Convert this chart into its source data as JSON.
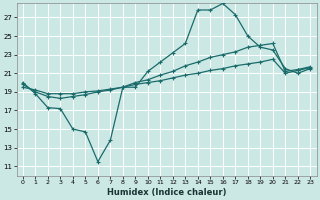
{
  "xlabel": "Humidex (Indice chaleur)",
  "bg_color": "#cce8e5",
  "line_color": "#1a6b6b",
  "grid_color": "#ffffff",
  "xlim": [
    -0.5,
    23.5
  ],
  "ylim": [
    10,
    28.5
  ],
  "yticks": [
    11,
    13,
    15,
    17,
    19,
    21,
    23,
    25,
    27
  ],
  "xticks": [
    0,
    1,
    2,
    3,
    4,
    5,
    6,
    7,
    8,
    9,
    10,
    11,
    12,
    13,
    14,
    15,
    16,
    17,
    18,
    19,
    20,
    21,
    22,
    23
  ],
  "line1_x": [
    0,
    1,
    2,
    3,
    4,
    5,
    6,
    7,
    8,
    9,
    10,
    11,
    12,
    13,
    14,
    15,
    16,
    17,
    18,
    19,
    20,
    21,
    22,
    23
  ],
  "line1_y": [
    20.0,
    18.8,
    17.3,
    17.2,
    15.0,
    14.7,
    11.5,
    13.8,
    19.5,
    19.5,
    21.2,
    22.2,
    23.2,
    24.2,
    27.8,
    27.8,
    28.5,
    27.3,
    25.0,
    23.8,
    23.5,
    21.5,
    21.0,
    21.5
  ],
  "line2_x": [
    0,
    1,
    2,
    3,
    4,
    5,
    6,
    7,
    8,
    9,
    10,
    11,
    12,
    13,
    14,
    15,
    16,
    17,
    18,
    19,
    20,
    21,
    22,
    23
  ],
  "line2_y": [
    19.8,
    19.0,
    18.5,
    18.3,
    18.5,
    18.7,
    19.0,
    19.2,
    19.5,
    20.0,
    20.3,
    20.8,
    21.2,
    21.8,
    22.2,
    22.7,
    23.0,
    23.3,
    23.8,
    24.0,
    24.2,
    21.2,
    21.4,
    21.7
  ],
  "line3_x": [
    0,
    1,
    2,
    3,
    4,
    5,
    6,
    7,
    8,
    9,
    10,
    11,
    12,
    13,
    14,
    15,
    16,
    17,
    18,
    19,
    20,
    21,
    22,
    23
  ],
  "line3_y": [
    19.5,
    19.2,
    18.8,
    18.8,
    18.8,
    19.0,
    19.1,
    19.3,
    19.5,
    19.8,
    20.0,
    20.2,
    20.5,
    20.8,
    21.0,
    21.3,
    21.5,
    21.8,
    22.0,
    22.2,
    22.5,
    21.0,
    21.3,
    21.6
  ]
}
